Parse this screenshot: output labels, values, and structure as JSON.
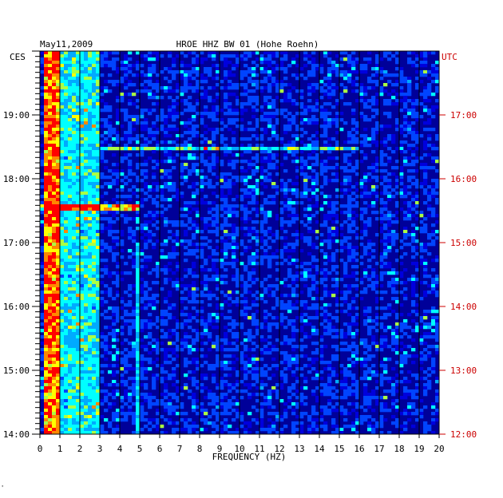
{
  "header": {
    "date": "May11,2009",
    "title": "HROE HHZ BW 01 (Hohe Roehn)"
  },
  "labels": {
    "left_tz": "CES",
    "right_tz": "UTC",
    "xlabel": "FREQUENCY (HZ)",
    "corner_mark": "'"
  },
  "colors": {
    "background": "#000099",
    "left_axis_text": "#000000",
    "right_axis_text": "#cc0000",
    "colormap": [
      "#000088",
      "#0000dd",
      "#0044ff",
      "#00aaff",
      "#00ffff",
      "#aaff44",
      "#ffff00",
      "#ff8800",
      "#ff0000"
    ]
  },
  "chart_data": {
    "type": "heatmap",
    "title": "HROE HHZ BW 01 (Hohe Roehn)",
    "xlabel": "FREQUENCY (HZ)",
    "xlim": [
      0,
      20
    ],
    "x_ticks": [
      "0",
      "1",
      "2",
      "3",
      "4",
      "5",
      "6",
      "7",
      "8",
      "9",
      "10",
      "11",
      "12",
      "13",
      "14",
      "15",
      "16",
      "17",
      "18",
      "19",
      "20"
    ],
    "y_left_label": "CES",
    "y_left_ticks": [
      "19:00",
      "18:00",
      "17:00",
      "16:00",
      "15:00",
      "14:00"
    ],
    "y_left_range": [
      "14:00",
      "20:00"
    ],
    "y_right_label": "UTC",
    "y_right_ticks": [
      "17:00",
      "16:00",
      "15:00",
      "14:00",
      "13:00",
      "12:00"
    ],
    "y_right_range": [
      "12:00",
      "18:00"
    ],
    "features": [
      {
        "name": "low-frequency band",
        "freq_range_hz": [
          0.3,
          1.0
        ],
        "intensity": "high"
      },
      {
        "name": "secondary band",
        "freq_range_hz": [
          1.0,
          3.0
        ],
        "intensity": "medium"
      },
      {
        "name": "narrow line",
        "freq_hz": 4.9,
        "time_ces": [
          "14:00",
          "17:00"
        ],
        "intensity": "medium"
      },
      {
        "name": "broad event",
        "time_ces": "18:28",
        "freq_range_hz": [
          3,
          16
        ],
        "intensity": "medium-high"
      },
      {
        "name": "burst",
        "time_ces": "17:33",
        "freq_range_hz": [
          0,
          5
        ],
        "intensity": "high"
      }
    ]
  }
}
